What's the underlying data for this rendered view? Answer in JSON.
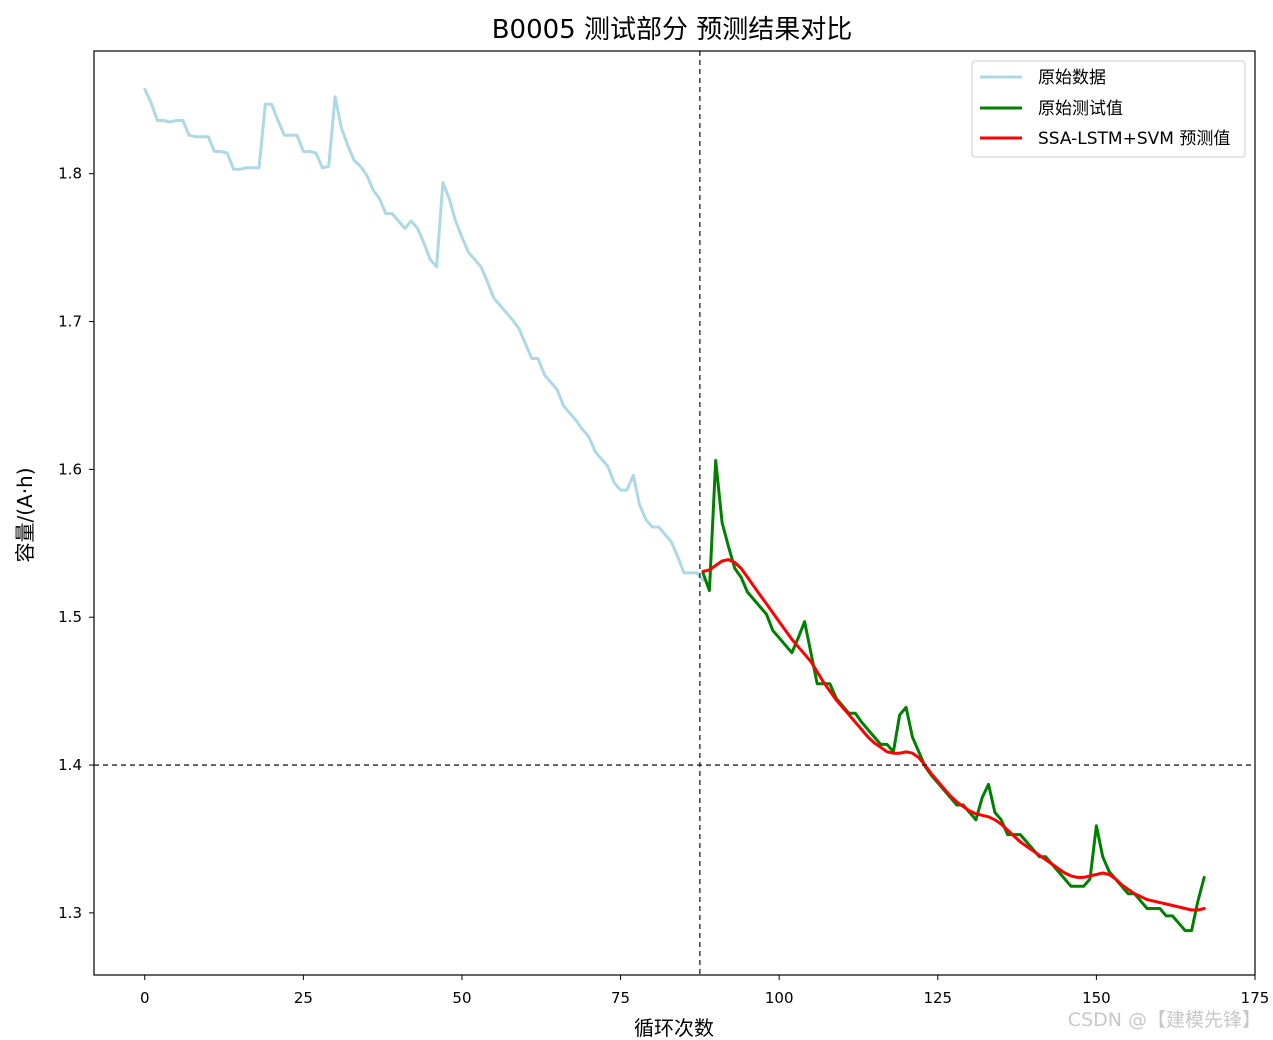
{
  "chart_data": {
    "type": "line",
    "title": "B0005 测试部分 预测结果对比",
    "xlabel": "循环次数",
    "ylabel": "容量/(A·h)",
    "xlim": [
      -8,
      175
    ],
    "ylim": [
      1.258,
      1.883
    ],
    "xticks": [
      0,
      25,
      50,
      75,
      100,
      125,
      150,
      175
    ],
    "yticks": [
      1.3,
      1.4,
      1.5,
      1.6,
      1.7,
      1.8
    ],
    "grid": false,
    "legend_position": "top-right",
    "reference_lines": {
      "vertical_x": 87.5,
      "horizontal_y": 1.4
    },
    "series": [
      {
        "name": "原始数据",
        "color": "#add8e6",
        "x": [
          0,
          1,
          2,
          3,
          4,
          5,
          6,
          7,
          8,
          9,
          10,
          11,
          12,
          13,
          14,
          15,
          16,
          17,
          18,
          19,
          20,
          21,
          22,
          23,
          24,
          25,
          26,
          27,
          28,
          29,
          30,
          31,
          32,
          33,
          34,
          35,
          36,
          37,
          38,
          39,
          40,
          41,
          42,
          43,
          44,
          45,
          46,
          47,
          48,
          49,
          50,
          51,
          52,
          53,
          54,
          55,
          56,
          57,
          58,
          59,
          60,
          61,
          62,
          63,
          64,
          65,
          66,
          67,
          68,
          69,
          70,
          71,
          72,
          73,
          74,
          75,
          76,
          77,
          78,
          79,
          80,
          81,
          82,
          83,
          84,
          85,
          86,
          87,
          88
        ],
        "y": [
          1.857,
          1.848,
          1.836,
          1.836,
          1.835,
          1.836,
          1.836,
          1.826,
          1.825,
          1.825,
          1.825,
          1.815,
          1.815,
          1.814,
          1.803,
          1.803,
          1.804,
          1.804,
          1.804,
          1.847,
          1.847,
          1.836,
          1.826,
          1.826,
          1.826,
          1.815,
          1.815,
          1.814,
          1.804,
          1.805,
          1.852,
          1.831,
          1.819,
          1.809,
          1.805,
          1.799,
          1.789,
          1.783,
          1.773,
          1.773,
          1.768,
          1.763,
          1.768,
          1.763,
          1.753,
          1.742,
          1.737,
          1.794,
          1.783,
          1.768,
          1.757,
          1.747,
          1.742,
          1.737,
          1.727,
          1.716,
          1.711,
          1.706,
          1.701,
          1.695,
          1.685,
          1.675,
          1.675,
          1.664,
          1.659,
          1.654,
          1.643,
          1.638,
          1.633,
          1.627,
          1.622,
          1.612,
          1.607,
          1.602,
          1.591,
          1.586,
          1.586,
          1.596,
          1.576,
          1.566,
          1.561,
          1.561,
          1.556,
          1.551,
          1.541,
          1.53,
          1.53,
          1.53,
          1.525
        ]
      },
      {
        "name": "原始测试值",
        "color": "#008000",
        "x": [
          88,
          89,
          90,
          91,
          92,
          93,
          94,
          95,
          96,
          97,
          98,
          99,
          100,
          101,
          102,
          103,
          104,
          105,
          106,
          107,
          108,
          109,
          110,
          111,
          112,
          113,
          114,
          115,
          116,
          117,
          118,
          119,
          120,
          121,
          122,
          123,
          124,
          125,
          126,
          127,
          128,
          129,
          130,
          131,
          132,
          133,
          134,
          135,
          136,
          137,
          138,
          139,
          140,
          141,
          142,
          143,
          144,
          145,
          146,
          147,
          148,
          149,
          150,
          151,
          152,
          153,
          154,
          155,
          156,
          157,
          158,
          159,
          160,
          161,
          162,
          163,
          164,
          165,
          166,
          167
        ],
        "y": [
          1.53,
          1.518,
          1.606,
          1.564,
          1.548,
          1.533,
          1.527,
          1.517,
          1.512,
          1.507,
          1.502,
          1.491,
          1.486,
          1.481,
          1.476,
          1.486,
          1.497,
          1.476,
          1.455,
          1.455,
          1.455,
          1.445,
          1.44,
          1.435,
          1.435,
          1.429,
          1.424,
          1.419,
          1.414,
          1.414,
          1.409,
          1.434,
          1.439,
          1.419,
          1.409,
          1.399,
          1.393,
          1.388,
          1.383,
          1.378,
          1.373,
          1.373,
          1.368,
          1.363,
          1.378,
          1.387,
          1.368,
          1.363,
          1.353,
          1.353,
          1.353,
          1.348,
          1.343,
          1.338,
          1.338,
          1.333,
          1.328,
          1.323,
          1.318,
          1.318,
          1.318,
          1.323,
          1.359,
          1.338,
          1.328,
          1.323,
          1.318,
          1.313,
          1.313,
          1.308,
          1.303,
          1.303,
          1.303,
          1.298,
          1.298,
          1.293,
          1.288,
          1.288,
          1.308,
          1.324
        ]
      },
      {
        "name": "SSA-LSTM+SVM 预测值",
        "color": "#ff0000",
        "x": [
          88,
          89,
          90,
          91,
          92,
          93,
          94,
          95,
          96,
          97,
          98,
          99,
          100,
          101,
          102,
          103,
          104,
          105,
          106,
          107,
          108,
          109,
          110,
          111,
          112,
          113,
          114,
          115,
          116,
          117,
          118,
          119,
          120,
          121,
          122,
          123,
          124,
          125,
          126,
          127,
          128,
          129,
          130,
          131,
          132,
          133,
          134,
          135,
          136,
          137,
          138,
          139,
          140,
          141,
          142,
          143,
          144,
          145,
          146,
          147,
          148,
          149,
          150,
          151,
          152,
          153,
          154,
          155,
          156,
          157,
          158,
          159,
          160,
          161,
          162,
          163,
          164,
          165,
          166,
          167
        ],
        "y": [
          1.531,
          1.532,
          1.535,
          1.538,
          1.539,
          1.537,
          1.533,
          1.527,
          1.521,
          1.515,
          1.509,
          1.503,
          1.497,
          1.491,
          1.485,
          1.48,
          1.475,
          1.47,
          1.463,
          1.456,
          1.45,
          1.444,
          1.439,
          1.434,
          1.429,
          1.424,
          1.419,
          1.415,
          1.412,
          1.409,
          1.408,
          1.408,
          1.409,
          1.408,
          1.405,
          1.4,
          1.394,
          1.389,
          1.384,
          1.379,
          1.375,
          1.372,
          1.369,
          1.367,
          1.366,
          1.365,
          1.363,
          1.36,
          1.356,
          1.352,
          1.348,
          1.345,
          1.342,
          1.339,
          1.336,
          1.333,
          1.33,
          1.327,
          1.325,
          1.324,
          1.324,
          1.325,
          1.326,
          1.327,
          1.326,
          1.323,
          1.319,
          1.316,
          1.313,
          1.311,
          1.309,
          1.308,
          1.307,
          1.306,
          1.305,
          1.304,
          1.303,
          1.302,
          1.302,
          1.303
        ]
      }
    ]
  },
  "watermark": "CSDN @【建模先锋】"
}
